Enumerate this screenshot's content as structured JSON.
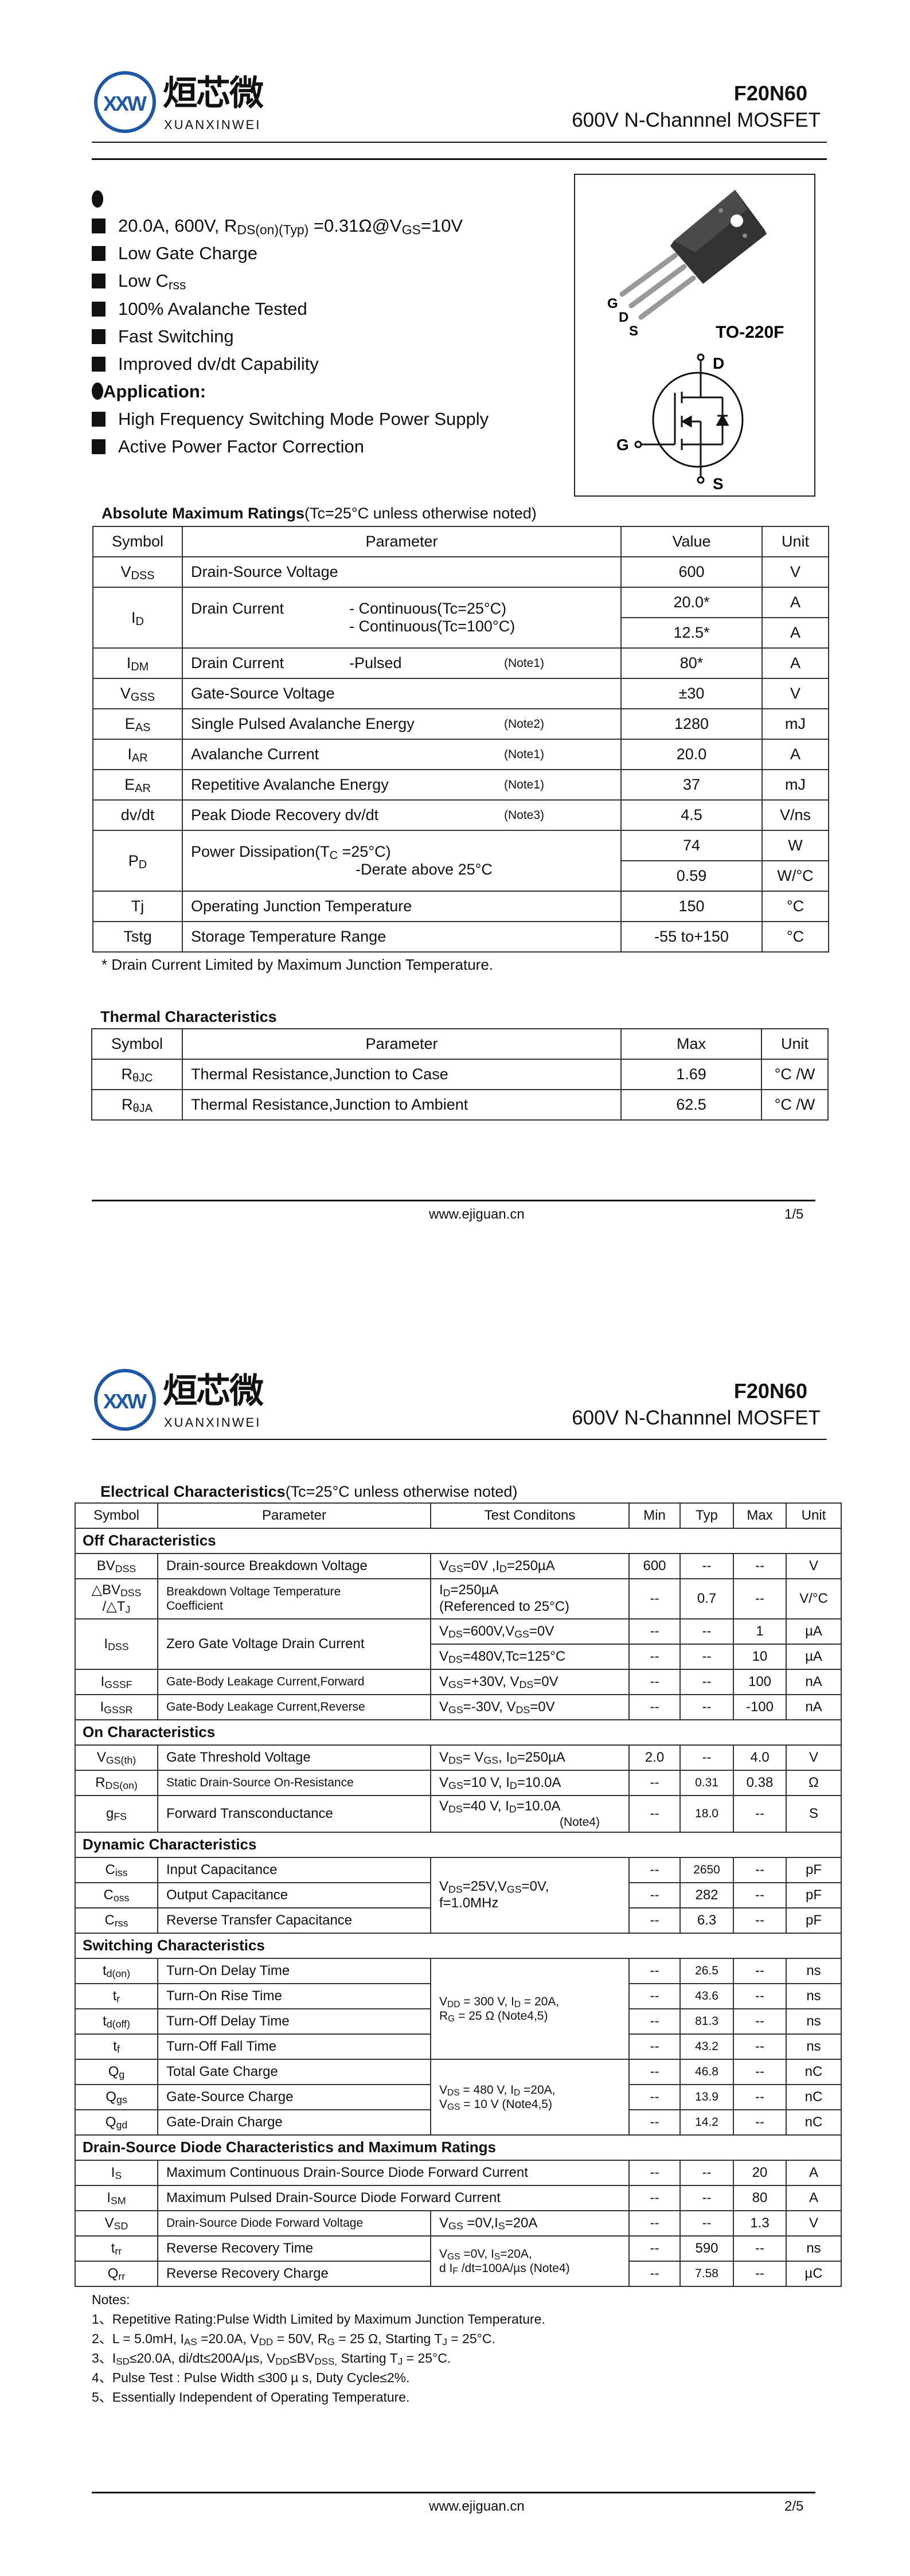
{
  "brand": {
    "logo_mark": "XXW",
    "name_cn": "烜芯微",
    "name_en": "XUANXINWEI",
    "color": "#1f57a8"
  },
  "header": {
    "part": "F20N60",
    "subtitle": "600V N-Channnel MOSFET"
  },
  "features": {
    "items": [
      "20.0A, 600V, R_{DS(on)(Typ)} =0.31Ω@V_{GS}=10V",
      "Low Gate Charge",
      "Low C_{rss}",
      "100% Avalanche Tested",
      "Fast Switching",
      "Improved dv/dt Capability"
    ],
    "application_title": "Application:",
    "applications": [
      "High Frequency Switching Mode Power Supply",
      "Active Power Factor Correction"
    ]
  },
  "package": {
    "pins": [
      "G",
      "D",
      "S"
    ],
    "name": "TO-220F",
    "symbol_pins": {
      "d": "D",
      "g": "G",
      "s": "S"
    }
  },
  "abs_max": {
    "title": "Absolute Maximum Ratings",
    "condition": "(Tc=25°C unless otherwise noted)",
    "headers": [
      "Symbol",
      "Parameter",
      "Value",
      "Unit"
    ],
    "rows": [
      {
        "sym": "V_{DSS}",
        "param": "Drain-Source Voltage",
        "values": [
          "600"
        ],
        "units": [
          "V"
        ]
      },
      {
        "sym": "I_{D}",
        "param": "Drain Current",
        "lines": [
          "- Continuous(Tc=25°C)",
          "- Continuous(Tc=100°C)"
        ],
        "values": [
          "20.0*",
          "12.5*"
        ],
        "units": [
          "A",
          "A"
        ]
      },
      {
        "sym": "I_{DM}",
        "param": "Drain Current",
        "lines": [
          "-Pulsed"
        ],
        "note": "(Note1)",
        "values": [
          "80*"
        ],
        "units": [
          "A"
        ]
      },
      {
        "sym": "V_{GSS}",
        "param": "Gate-Source Voltage",
        "values": [
          "±30"
        ],
        "units": [
          "V"
        ]
      },
      {
        "sym": "E_{AS}",
        "param": "Single Pulsed Avalanche Energy",
        "note": "(Note2)",
        "values": [
          "1280"
        ],
        "units": [
          "mJ"
        ]
      },
      {
        "sym": "I_{AR}",
        "param": "Avalanche Current",
        "note": "(Note1)",
        "values": [
          "20.0"
        ],
        "units": [
          "A"
        ]
      },
      {
        "sym": "E_{AR}",
        "param": "Repetitive Avalanche Energy",
        "note": "(Note1)",
        "values": [
          "37"
        ],
        "units": [
          "mJ"
        ]
      },
      {
        "sym": "dv/dt",
        "param": "Peak Diode Recovery dv/dt",
        "note": "(Note3)",
        "values": [
          "4.5"
        ],
        "units": [
          "V/ns"
        ]
      },
      {
        "sym": "P_{D}",
        "param": "Power Dissipation(T_{C} =25°C)",
        "second": "-Derate above 25°C",
        "values": [
          "74",
          "0.59"
        ],
        "units": [
          "W",
          "W/°C"
        ]
      },
      {
        "sym": "Tj",
        "param": "Operating Junction Temperature",
        "values": [
          "150"
        ],
        "units": [
          "°C"
        ]
      },
      {
        "sym": "Tstg",
        "param": "Storage Temperature Range",
        "values": [
          "-55 to+150"
        ],
        "units": [
          "°C"
        ]
      }
    ],
    "footnote": "* Drain Current Limited by Maximum Junction Temperature."
  },
  "thermal": {
    "title": "Thermal Characteristics",
    "headers": [
      "Symbol",
      "Parameter",
      "Max",
      "Unit"
    ],
    "rows": [
      {
        "sym": "R_{θJC}",
        "param": "Thermal Resistance,Junction to Case",
        "max": "1.69",
        "unit": "°C /W"
      },
      {
        "sym": "R_{θJA}",
        "param": "Thermal Resistance,Junction to Ambient",
        "max": "62.5",
        "unit": "°C /W"
      }
    ]
  },
  "footer1": {
    "site": "www.ejiguan.cn",
    "page": "1/5"
  },
  "electrical": {
    "title": "Electrical Characteristics",
    "condition": "(Tc=25°C unless otherwise noted)",
    "headers": [
      "Symbol",
      "Parameter",
      "Test Conditons",
      "Min",
      "Typ",
      "Max",
      "Unit"
    ],
    "sections": [
      {
        "title": "Off Characteristics",
        "rows": [
          {
            "sym": "BV_{DSS}",
            "param": "Drain-source Breakdown Voltage",
            "cond": "V_{GS}=0V ,I_{D}=250µA",
            "min": "600",
            "typ": "--",
            "max": "--",
            "unit": "V"
          },
          {
            "sym": "△BV_{DSS}\n/△T_{J}",
            "param": "Breakdown Voltage Temperature\nCoefficient",
            "cond": "I_{D}=250µA\n(Referenced to 25°C)",
            "min": "--",
            "typ": "0.7",
            "max": "--",
            "unit": "V/°C"
          },
          {
            "sym": "I_{DSS}",
            "param": "Zero Gate Voltage Drain Current",
            "sub_rows": [
              {
                "cond": "V_{DS}=600V,V_{GS}=0V",
                "min": "--",
                "typ": "--",
                "max": "1",
                "unit": "µA"
              },
              {
                "cond": "V_{DS}=480V,Tc=125°C",
                "min": "--",
                "typ": "--",
                "max": "10",
                "unit": "µA"
              }
            ]
          },
          {
            "sym": "I_{GSSF}",
            "param": "Gate-Body Leakage Current,Forward",
            "cond": "V_{GS}=+30V, V_{DS}=0V",
            "min": "--",
            "typ": "--",
            "max": "100",
            "unit": "nA"
          },
          {
            "sym": "I_{GSSR}",
            "param": "Gate-Body Leakage Current,Reverse",
            "cond": "V_{GS}=-30V, V_{DS}=0V",
            "min": "--",
            "typ": "--",
            "max": "-100",
            "unit": "nA"
          }
        ]
      },
      {
        "title": "On Characteristics",
        "rows": [
          {
            "sym": "V_{GS(th)}",
            "param": "Gate Threshold Voltage",
            "cond": "V_{DS}= V_{GS}, I_{D}=250µA",
            "min": "2.0",
            "typ": "--",
            "max": "4.0",
            "unit": "V"
          },
          {
            "sym": "R_{DS(on)}",
            "param": "Static Drain-Source On-Resistance",
            "cond": "V_{GS}=10 V, I_{D}=10.0A",
            "min": "--",
            "typ": "0.31",
            "max": "0.38",
            "unit": "Ω"
          },
          {
            "sym": "g_{FS}",
            "param": "Forward Transconductance",
            "cond": "V_{DS}=40 V, I_{D}=10.0A",
            "cond_note": "(Note4)",
            "min": "--",
            "typ": "18.0",
            "max": "--",
            "unit": "S"
          }
        ]
      },
      {
        "title": "Dynamic Characteristics",
        "rows": [
          {
            "sym": "C_{iss}",
            "param": "Input Capacitance",
            "cond": "V_{DS}=25V,V_{GS}=0V,\nf=1.0MHz",
            "cond_span": 3,
            "min": "--",
            "typ": "2650",
            "max": "--",
            "unit": "pF"
          },
          {
            "sym": "C_{oss}",
            "param": "Output Capacitance",
            "min": "--",
            "typ": "282",
            "max": "--",
            "unit": "pF"
          },
          {
            "sym": "C_{rss}",
            "param": "Reverse Transfer Capacitance",
            "min": "--",
            "typ": "6.3",
            "max": "--",
            "unit": "pF"
          }
        ]
      },
      {
        "title": "Switching Characteristics",
        "rows": [
          {
            "sym": "t_{d(on)}",
            "param": "Turn-On Delay Time",
            "cond": "V_{DD} = 300 V, I_{D} = 20A,\nR_{G} = 25 Ω    (Note4,5)",
            "cond_span": 4,
            "min": "--",
            "typ": "26.5",
            "max": "--",
            "unit": "ns"
          },
          {
            "sym": "t_{r}",
            "param": "Turn-On Rise Time",
            "min": "--",
            "typ": "43.6",
            "max": "--",
            "unit": "ns"
          },
          {
            "sym": "t_{d(off)}",
            "param": "Turn-Off Delay Time",
            "min": "--",
            "typ": "81.3",
            "max": "--",
            "unit": "ns"
          },
          {
            "sym": "t_{f}",
            "param": "Turn-Off Fall Time",
            "min": "--",
            "typ": "43.2",
            "max": "--",
            "unit": "ns"
          },
          {
            "sym": "Q_{g}",
            "param": "Total Gate Charge",
            "cond": "V_{DS} = 480 V, I_{D} =20A,\nV_{GS} = 10 V    (Note4,5)",
            "cond_span": 3,
            "min": "--",
            "typ": "46.8",
            "max": "--",
            "unit": "nC"
          },
          {
            "sym": "Q_{gs}",
            "param": "Gate-Source Charge",
            "min": "--",
            "typ": "13.9",
            "max": "--",
            "unit": "nC"
          },
          {
            "sym": "Q_{gd}",
            "param": "Gate-Drain Charge",
            "min": "--",
            "typ": "14.2",
            "max": "--",
            "unit": "nC"
          }
        ]
      },
      {
        "title": "Drain-Source Diode Characteristics and Maximum Ratings",
        "rows": [
          {
            "sym": "I_{S}",
            "param": "Maximum Continuous Drain-Source Diode Forward Current",
            "param_spans_conditions": true,
            "min": "--",
            "typ": "--",
            "max": "20",
            "unit": "A"
          },
          {
            "sym": "I_{SM}",
            "param": "Maximum Pulsed Drain-Source Diode Forward Current",
            "param_spans_conditions": true,
            "min": "--",
            "typ": "--",
            "max": "80",
            "unit": "A"
          },
          {
            "sym": "V_{SD}",
            "param": "Drain-Source Diode Forward Voltage",
            "cond": "V_{GS} =0V,I_{S}=20A",
            "min": "--",
            "typ": "--",
            "max": "1.3",
            "unit": "V"
          },
          {
            "sym": "t_{rr}",
            "param": "Reverse Recovery Time",
            "cond": "V_{GS} =0V, I_{S}=20A,\nd I_{F} /dt=100A/µs (Note4)",
            "cond_span": 2,
            "min": "--",
            "typ": "590",
            "max": "--",
            "unit": "ns"
          },
          {
            "sym": "Q_{rr}",
            "param": "Reverse Recovery Charge",
            "min": "--",
            "typ": "7.58",
            "max": "--",
            "unit": "µC"
          }
        ]
      }
    ],
    "notes_title": "Notes:",
    "notes": [
      "1、Repetitive Rating:Pulse Width Limited by Maximum Junction Temperature.",
      "2、L = 5.0mH, I_{AS} =20.0A, V_{DD} = 50V, R_{G} = 25 Ω, Starting T_{J} = 25°C.",
      "3、I_{SD}≤20.0A, di/dt≤200A/µs, V_{DD}≤BV_{DSS,} Starting T_{J} = 25°C.",
      "4、Pulse Test : Pulse Width ≤300 µ s, Duty Cycle≤2%.",
      "5、Essentially Independent of Operating Temperature."
    ]
  },
  "footer2": {
    "site": "www.ejiguan.cn",
    "page": "2/5"
  }
}
